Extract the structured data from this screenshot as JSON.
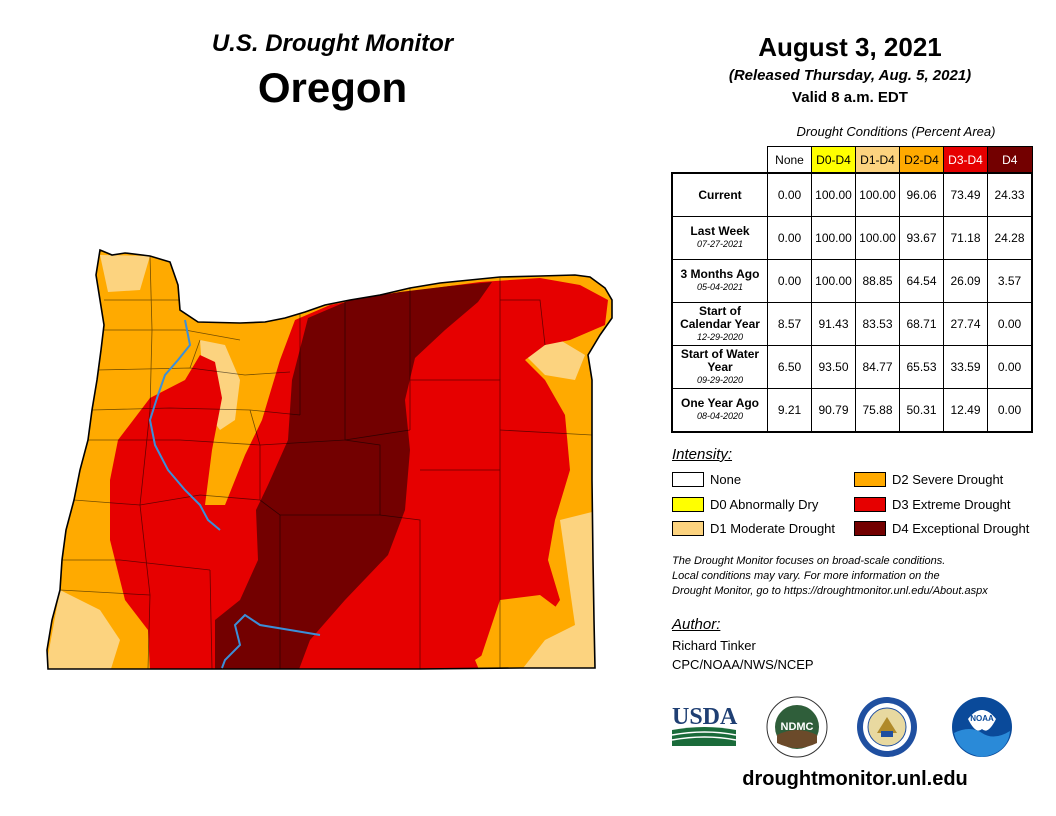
{
  "header": {
    "monitor_title": "U.S. Drought Monitor",
    "state": "Oregon",
    "date": "August 3, 2021",
    "released": "(Released Thursday, Aug. 5, 2021)",
    "valid": "Valid 8 a.m. EDT"
  },
  "table": {
    "caption": "Drought Conditions (Percent Area)",
    "columns": [
      {
        "label": "None",
        "color": "#ffffff",
        "text_color": "#000000"
      },
      {
        "label": "D0-D4",
        "color": "#ffff00",
        "text_color": "#000000"
      },
      {
        "label": "D1-D4",
        "color": "#fcd37f",
        "text_color": "#000000"
      },
      {
        "label": "D2-D4",
        "color": "#ffaa00",
        "text_color": "#000000"
      },
      {
        "label": "D3-D4",
        "color": "#e60000",
        "text_color": "#ffffff"
      },
      {
        "label": "D4",
        "color": "#730000",
        "text_color": "#ffffff"
      }
    ],
    "rows": [
      {
        "label": "Current",
        "sub": "",
        "values": [
          "0.00",
          "100.00",
          "100.00",
          "96.06",
          "73.49",
          "24.33"
        ]
      },
      {
        "label": "Last Week",
        "sub": "07-27-2021",
        "values": [
          "0.00",
          "100.00",
          "100.00",
          "93.67",
          "71.18",
          "24.28"
        ]
      },
      {
        "label": "3 Months Ago",
        "sub": "05-04-2021",
        "values": [
          "0.00",
          "100.00",
          "88.85",
          "64.54",
          "26.09",
          "3.57"
        ]
      },
      {
        "label": "Start of Calendar Year",
        "sub": "12-29-2020",
        "values": [
          "8.57",
          "91.43",
          "83.53",
          "68.71",
          "27.74",
          "0.00"
        ]
      },
      {
        "label": "Start of Water Year",
        "sub": "09-29-2020",
        "values": [
          "6.50",
          "93.50",
          "84.77",
          "65.53",
          "33.59",
          "0.00"
        ]
      },
      {
        "label": "One Year Ago",
        "sub": "08-04-2020",
        "values": [
          "9.21",
          "90.79",
          "75.88",
          "50.31",
          "12.49",
          "0.00"
        ]
      }
    ]
  },
  "legend": {
    "title": "Intensity:",
    "items": [
      {
        "label": "None",
        "color": "#ffffff"
      },
      {
        "label": "D0 Abnormally Dry",
        "color": "#ffff00"
      },
      {
        "label": "D1 Moderate Drought",
        "color": "#fcd37f"
      },
      {
        "label": "D2 Severe Drought",
        "color": "#ffaa00"
      },
      {
        "label": "D3 Extreme Drought",
        "color": "#e60000"
      },
      {
        "label": "D4 Exceptional Drought",
        "color": "#730000"
      }
    ]
  },
  "note": {
    "line1": "The Drought Monitor focuses on broad-scale conditions.",
    "line2": "Local conditions may vary. For more information on the",
    "line3": "Drought Monitor, go to https://droughtmonitor.unl.edu/About.aspx"
  },
  "author": {
    "title": "Author:",
    "name": "Richard Tinker",
    "org": "CPC/NOAA/NWS/NCEP"
  },
  "logos": {
    "usda": "USDA",
    "ndmc": "NDMC",
    "noaa": "NOAA",
    "commerce": "commerce-seal"
  },
  "footer": {
    "url": "droughtmonitor.unl.edu"
  },
  "colors": {
    "d1": "#fcd37f",
    "d2": "#ffaa00",
    "d3": "#e60000",
    "d4": "#730000",
    "river": "#3b8fd9"
  }
}
